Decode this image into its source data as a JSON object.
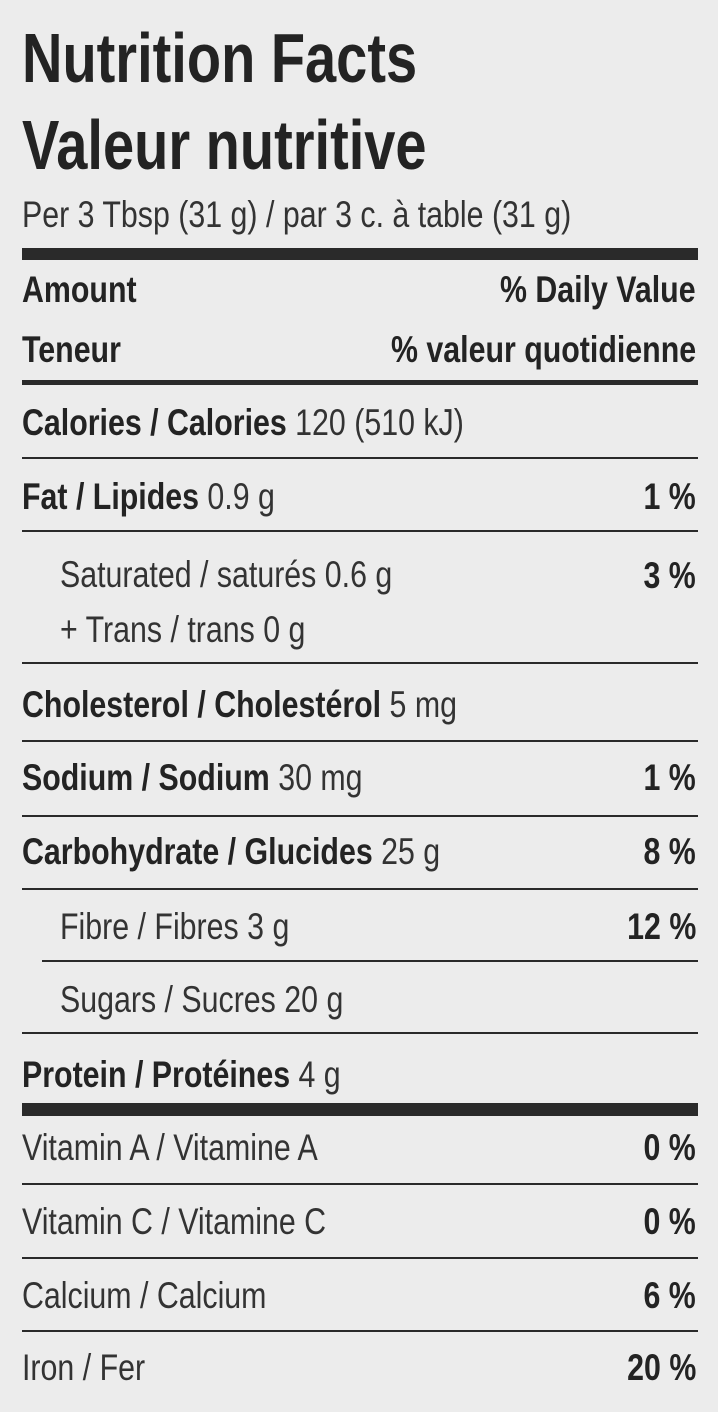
{
  "title_en": "Nutrition Facts",
  "title_fr": "Valeur nutritive",
  "serving": "Per 3 Tbsp (31 g) / par 3 c. à table (31 g)",
  "header": {
    "amount": "Amount",
    "daily_value": "% Daily Value",
    "teneur": "Teneur",
    "valeur_quotidienne": "% valeur quotidienne"
  },
  "rows": [
    {
      "label": "Calories / Calories",
      "value": "120 (510 kJ)",
      "dv": ""
    },
    {
      "label": "Fat / Lipides",
      "value": "0.9 g",
      "dv": "1 %"
    },
    {
      "label": "Saturated / saturés",
      "value": "0.6 g",
      "dv": "3 %",
      "indent": true,
      "sub": "+ Trans / trans 0 g"
    },
    {
      "label": "Cholesterol / Cholestérol",
      "value": "5 mg",
      "dv": ""
    },
    {
      "label": "Sodium / Sodium",
      "value": "30 mg",
      "dv": "1 %"
    },
    {
      "label": "Carbohydrate / Glucides",
      "value": "25 g",
      "dv": "8 %"
    },
    {
      "label": "Fibre / Fibres",
      "value": "3 g",
      "dv": "12 %",
      "indent": true
    },
    {
      "label": "Sugars / Sucres",
      "value": "20 g",
      "dv": "",
      "indent": true
    },
    {
      "label": "Protein / Protéines",
      "value": "4 g",
      "dv": ""
    }
  ],
  "vitamins": [
    {
      "label": "Vitamin A / Vitamine A",
      "dv": "0 %"
    },
    {
      "label": "Vitamin C / Vitamine C",
      "dv": "0 %"
    },
    {
      "label": "Calcium / Calcium",
      "dv": "6 %"
    },
    {
      "label": "Iron / Fer",
      "dv": "20 %"
    }
  ]
}
